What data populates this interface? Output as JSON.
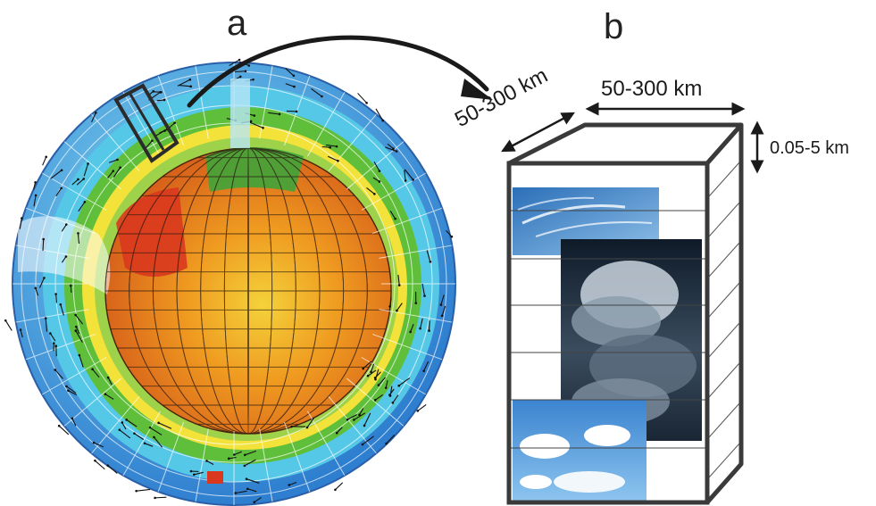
{
  "panels": {
    "a": {
      "label": "a"
    },
    "b": {
      "label": "b"
    }
  },
  "dimensions": {
    "depth": "50-300 km",
    "width": "50-300 km",
    "height": "0.05-5 km"
  },
  "colors": {
    "outer_shell_blue": "#2f7fd0",
    "shell_cyan": "#55c8e8",
    "shell_green": "#5fbf3a",
    "shell_yellow": "#f2e23a",
    "core_orange": "#ee8a1e",
    "core_red": "#d9381e",
    "box_outline": "#3a3a3a",
    "sky_blue": "#3f82c6",
    "storm_dark": "#1c2a38"
  },
  "icons": {
    "pointer": "curved-arrow-icon",
    "dimension": "double-arrow-icon"
  }
}
